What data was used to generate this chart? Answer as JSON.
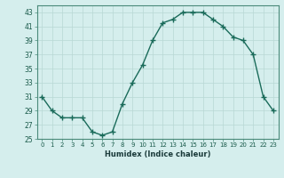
{
  "x": [
    0,
    1,
    2,
    3,
    4,
    5,
    6,
    7,
    8,
    9,
    10,
    11,
    12,
    13,
    14,
    15,
    16,
    17,
    18,
    19,
    20,
    21,
    22,
    23
  ],
  "y": [
    31,
    29,
    28,
    28,
    28,
    26,
    25.5,
    26,
    30,
    33,
    35.5,
    39,
    41.5,
    42,
    43,
    43,
    43,
    42,
    41,
    39.5,
    39,
    37,
    31,
    29
  ],
  "ylim": [
    25,
    44
  ],
  "yticks": [
    25,
    27,
    29,
    31,
    33,
    35,
    37,
    39,
    41,
    43
  ],
  "xtick_labels": [
    "0",
    "1",
    "2",
    "3",
    "4",
    "5",
    "6",
    "7",
    "8",
    "9",
    "10",
    "11",
    "12",
    "13",
    "14",
    "15",
    "16",
    "17",
    "18",
    "19",
    "20",
    "21",
    "22",
    "23"
  ],
  "xlabel": "Humidex (Indice chaleur)",
  "line_color": "#1a6b5a",
  "marker": "+",
  "marker_size": 4,
  "bg_color": "#d5eeed",
  "grid_color": "#b8d8d4",
  "line_width": 1.0
}
